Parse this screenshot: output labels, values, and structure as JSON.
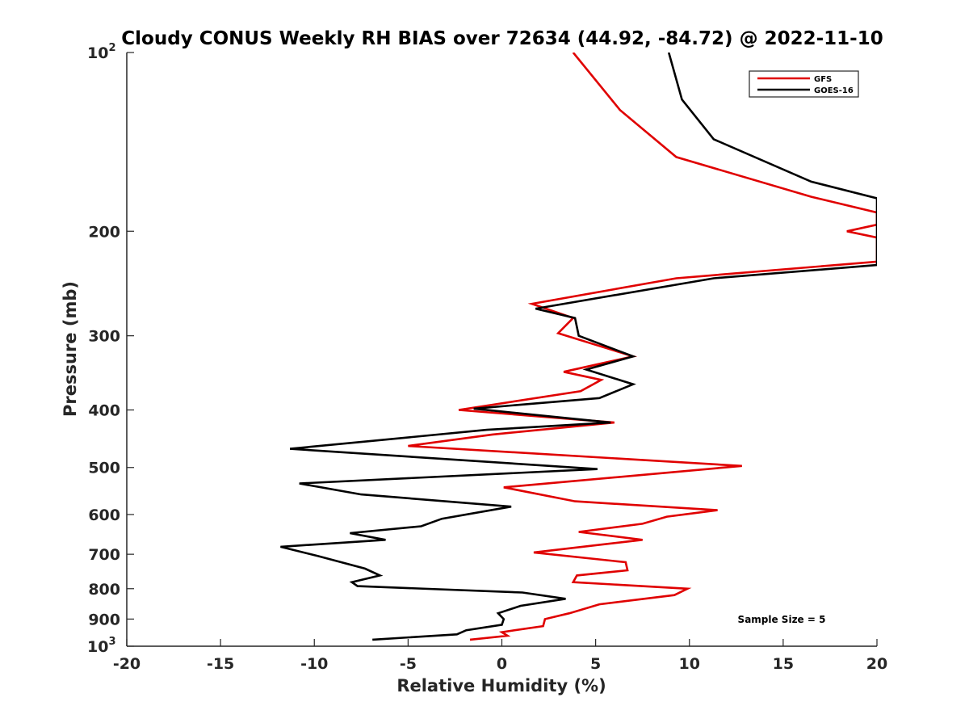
{
  "chart_data": {
    "type": "line",
    "title": "Cloudy CONUS Weekly RH BIAS over 72634 (44.92, -84.72) @ 2022-11-10",
    "xlabel": "Relative Humidity (%)",
    "ylabel": "Pressure (mb)",
    "xlim": [
      -20,
      20
    ],
    "ylim": [
      100,
      1000
    ],
    "y_scale": "log",
    "y_reversed": true,
    "grid": false,
    "legend_position": "top-right",
    "x_ticks": [
      "-20",
      "-15",
      "-10",
      "-5",
      "0",
      "5",
      "10",
      "15",
      "20"
    ],
    "y_ticks": [
      {
        "value": 100,
        "base": "10",
        "exp": "2"
      },
      {
        "value": 200,
        "label": "200"
      },
      {
        "value": 300,
        "label": "300"
      },
      {
        "value": 400,
        "label": "400"
      },
      {
        "value": 500,
        "label": "500"
      },
      {
        "value": 600,
        "label": "600"
      },
      {
        "value": 700,
        "label": "700"
      },
      {
        "value": 800,
        "label": "800"
      },
      {
        "value": 900,
        "label": "900"
      },
      {
        "value": 1000,
        "base": "10",
        "exp": "3"
      }
    ],
    "annotation": "Sample Size = 5",
    "series": [
      {
        "name": "GFS",
        "color": "#e00000",
        "points": [
          [
            3.8,
            100
          ],
          [
            6.3,
            125
          ],
          [
            9.3,
            150
          ],
          [
            16.5,
            175
          ],
          [
            20.0,
            186
          ],
          [
            20.0,
            195
          ],
          [
            18.4,
            200
          ],
          [
            20.0,
            205
          ],
          [
            20.0,
            225
          ],
          [
            9.3,
            240
          ],
          [
            1.6,
            265
          ],
          [
            3.8,
            280
          ],
          [
            3.0,
            297
          ],
          [
            7.0,
            325
          ],
          [
            3.3,
            345
          ],
          [
            5.3,
            356
          ],
          [
            4.2,
            372
          ],
          [
            -2.3,
            400
          ],
          [
            6.0,
            420
          ],
          [
            -0.5,
            440
          ],
          [
            -5.0,
            460
          ],
          [
            12.8,
            497
          ],
          [
            0.1,
            540
          ],
          [
            3.9,
            570
          ],
          [
            11.5,
            590
          ],
          [
            8.8,
            605
          ],
          [
            7.5,
            622
          ],
          [
            4.1,
            642
          ],
          [
            7.5,
            662
          ],
          [
            1.7,
            695
          ],
          [
            6.6,
            722
          ],
          [
            6.7,
            745
          ],
          [
            4.0,
            760
          ],
          [
            3.8,
            780
          ],
          [
            9.9,
            800
          ],
          [
            9.2,
            820
          ],
          [
            5.2,
            850
          ],
          [
            3.6,
            880
          ],
          [
            2.3,
            900
          ],
          [
            2.2,
            925
          ],
          [
            0.0,
            947
          ],
          [
            0.3,
            960
          ],
          [
            -1.7,
            975
          ]
        ]
      },
      {
        "name": "GOES-16",
        "color": "#000000",
        "points": [
          [
            8.9,
            100
          ],
          [
            9.6,
            120
          ],
          [
            11.3,
            140
          ],
          [
            16.5,
            165
          ],
          [
            20.0,
            176
          ],
          [
            20.0,
            228
          ],
          [
            11.3,
            240
          ],
          [
            1.8,
            270
          ],
          [
            3.9,
            280
          ],
          [
            4.1,
            300
          ],
          [
            7.0,
            325
          ],
          [
            4.5,
            342
          ],
          [
            7.0,
            362
          ],
          [
            5.2,
            382
          ],
          [
            -1.5,
            398
          ],
          [
            5.8,
            420
          ],
          [
            -0.8,
            432
          ],
          [
            -11.3,
            465
          ],
          [
            5.1,
            503
          ],
          [
            -10.8,
            532
          ],
          [
            -7.5,
            555
          ],
          [
            0.5,
            582
          ],
          [
            -3.2,
            610
          ],
          [
            -4.3,
            628
          ],
          [
            -8.1,
            645
          ],
          [
            -6.2,
            662
          ],
          [
            -11.8,
            680
          ],
          [
            -9.8,
            705
          ],
          [
            -7.3,
            740
          ],
          [
            -6.5,
            760
          ],
          [
            -8.0,
            780
          ],
          [
            -7.7,
            792
          ],
          [
            1.1,
            812
          ],
          [
            3.4,
            832
          ],
          [
            1.0,
            855
          ],
          [
            -0.2,
            880
          ],
          [
            0.1,
            900
          ],
          [
            0.0,
            920
          ],
          [
            -1.9,
            940
          ],
          [
            -2.4,
            955
          ],
          [
            -6.9,
            975
          ]
        ]
      }
    ]
  }
}
